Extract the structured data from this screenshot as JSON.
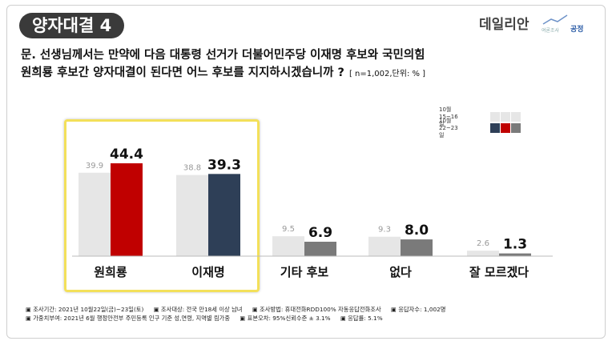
{
  "header": {
    "badge": "양자대결 4",
    "brand": "데일리안",
    "brand2_main": "공정",
    "brand2_sub": "여론조사"
  },
  "question": {
    "line1": "문. 선생님께서는 만약에 다음 대통령 선거가 더불어민주당 이재명 후보와 국민의힘",
    "line2": "원희룡 후보간 양자대결이 된다면 어느 후보를 지지하시겠습니까 ?",
    "note": "[ n=1,002,단위: % ]"
  },
  "chart_data": {
    "type": "bar",
    "categories": [
      "원희룡",
      "이재명",
      "기타 후보",
      "없다",
      "잘 모르겠다"
    ],
    "series": [
      {
        "name": "10월15~16일",
        "values": [
          39.9,
          38.8,
          9.5,
          9.3,
          2.6
        ],
        "color": "#e6e6e6"
      },
      {
        "name": "10월22~23일",
        "values": [
          44.4,
          39.3,
          6.9,
          8.0,
          1.3
        ],
        "colors": [
          "#c00000",
          "#2e3f57",
          "#7a7a7a",
          "#7a7a7a",
          "#7a7a7a"
        ]
      }
    ],
    "legend": {
      "position": "top-right",
      "rows": [
        {
          "label": "10월15~16일",
          "swatches": [
            "#e6e6e6",
            "#e6e6e6",
            "#e6e6e6"
          ]
        },
        {
          "label": "10월22~23일",
          "swatches": [
            "#2e3f57",
            "#c00000",
            "#7a7a7a"
          ]
        }
      ]
    },
    "ylim": [
      0,
      50
    ],
    "grid": false
  },
  "footer": {
    "line1": [
      "▣ 조사기간: 2021년 10월22일(금)~23일(토)",
      "▣ 조사대상: 전국 만18세 이상 남녀",
      "▣ 조사방법: 휴대전화RDD100% 자동응답전화조사",
      "▣ 응답자수: 1,002명"
    ],
    "line2": [
      "▣ 가중치부여: 2021년 6월 행정안전부 주민등록 인구 기준 성,연령, 지역별 림가중",
      "▣ 표본오차: 95%신뢰수준 ± 3.1%",
      "▣ 응답률: 5.1%"
    ]
  }
}
